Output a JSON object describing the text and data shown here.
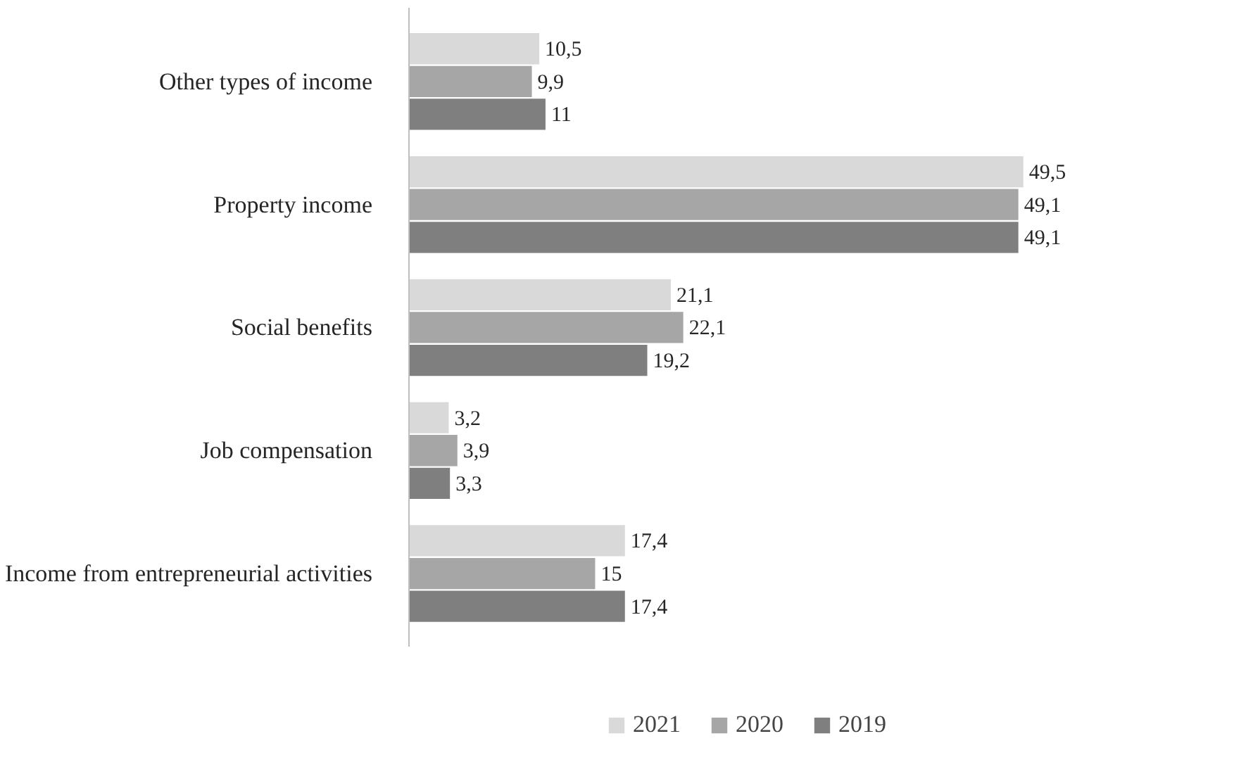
{
  "chart_data": {
    "type": "bar",
    "orientation": "horizontal",
    "categories": [
      "Other types of income",
      "Property income",
      "Social benefits",
      "Job compensation",
      "Income from entrepreneurial activities"
    ],
    "series": [
      {
        "name": "2021",
        "color": "#d9d9d9",
        "values": [
          10.5,
          49.5,
          21.1,
          3.2,
          17.4
        ],
        "value_labels": [
          "10,5",
          "49,5",
          "21,1",
          "3,2",
          "17,4"
        ]
      },
      {
        "name": "2020",
        "color": "#a6a6a6",
        "values": [
          9.9,
          49.1,
          22.1,
          3.9,
          15
        ],
        "value_labels": [
          "9,9",
          "49,1",
          "22,1",
          "3,9",
          "15"
        ]
      },
      {
        "name": "2019",
        "color": "#7f7f7f",
        "values": [
          11,
          49.1,
          19.2,
          3.3,
          17.4
        ],
        "value_labels": [
          "11",
          "49,1",
          "19,2",
          "3,3",
          "17,4"
        ]
      }
    ],
    "legend": "bottom",
    "grid": false
  }
}
